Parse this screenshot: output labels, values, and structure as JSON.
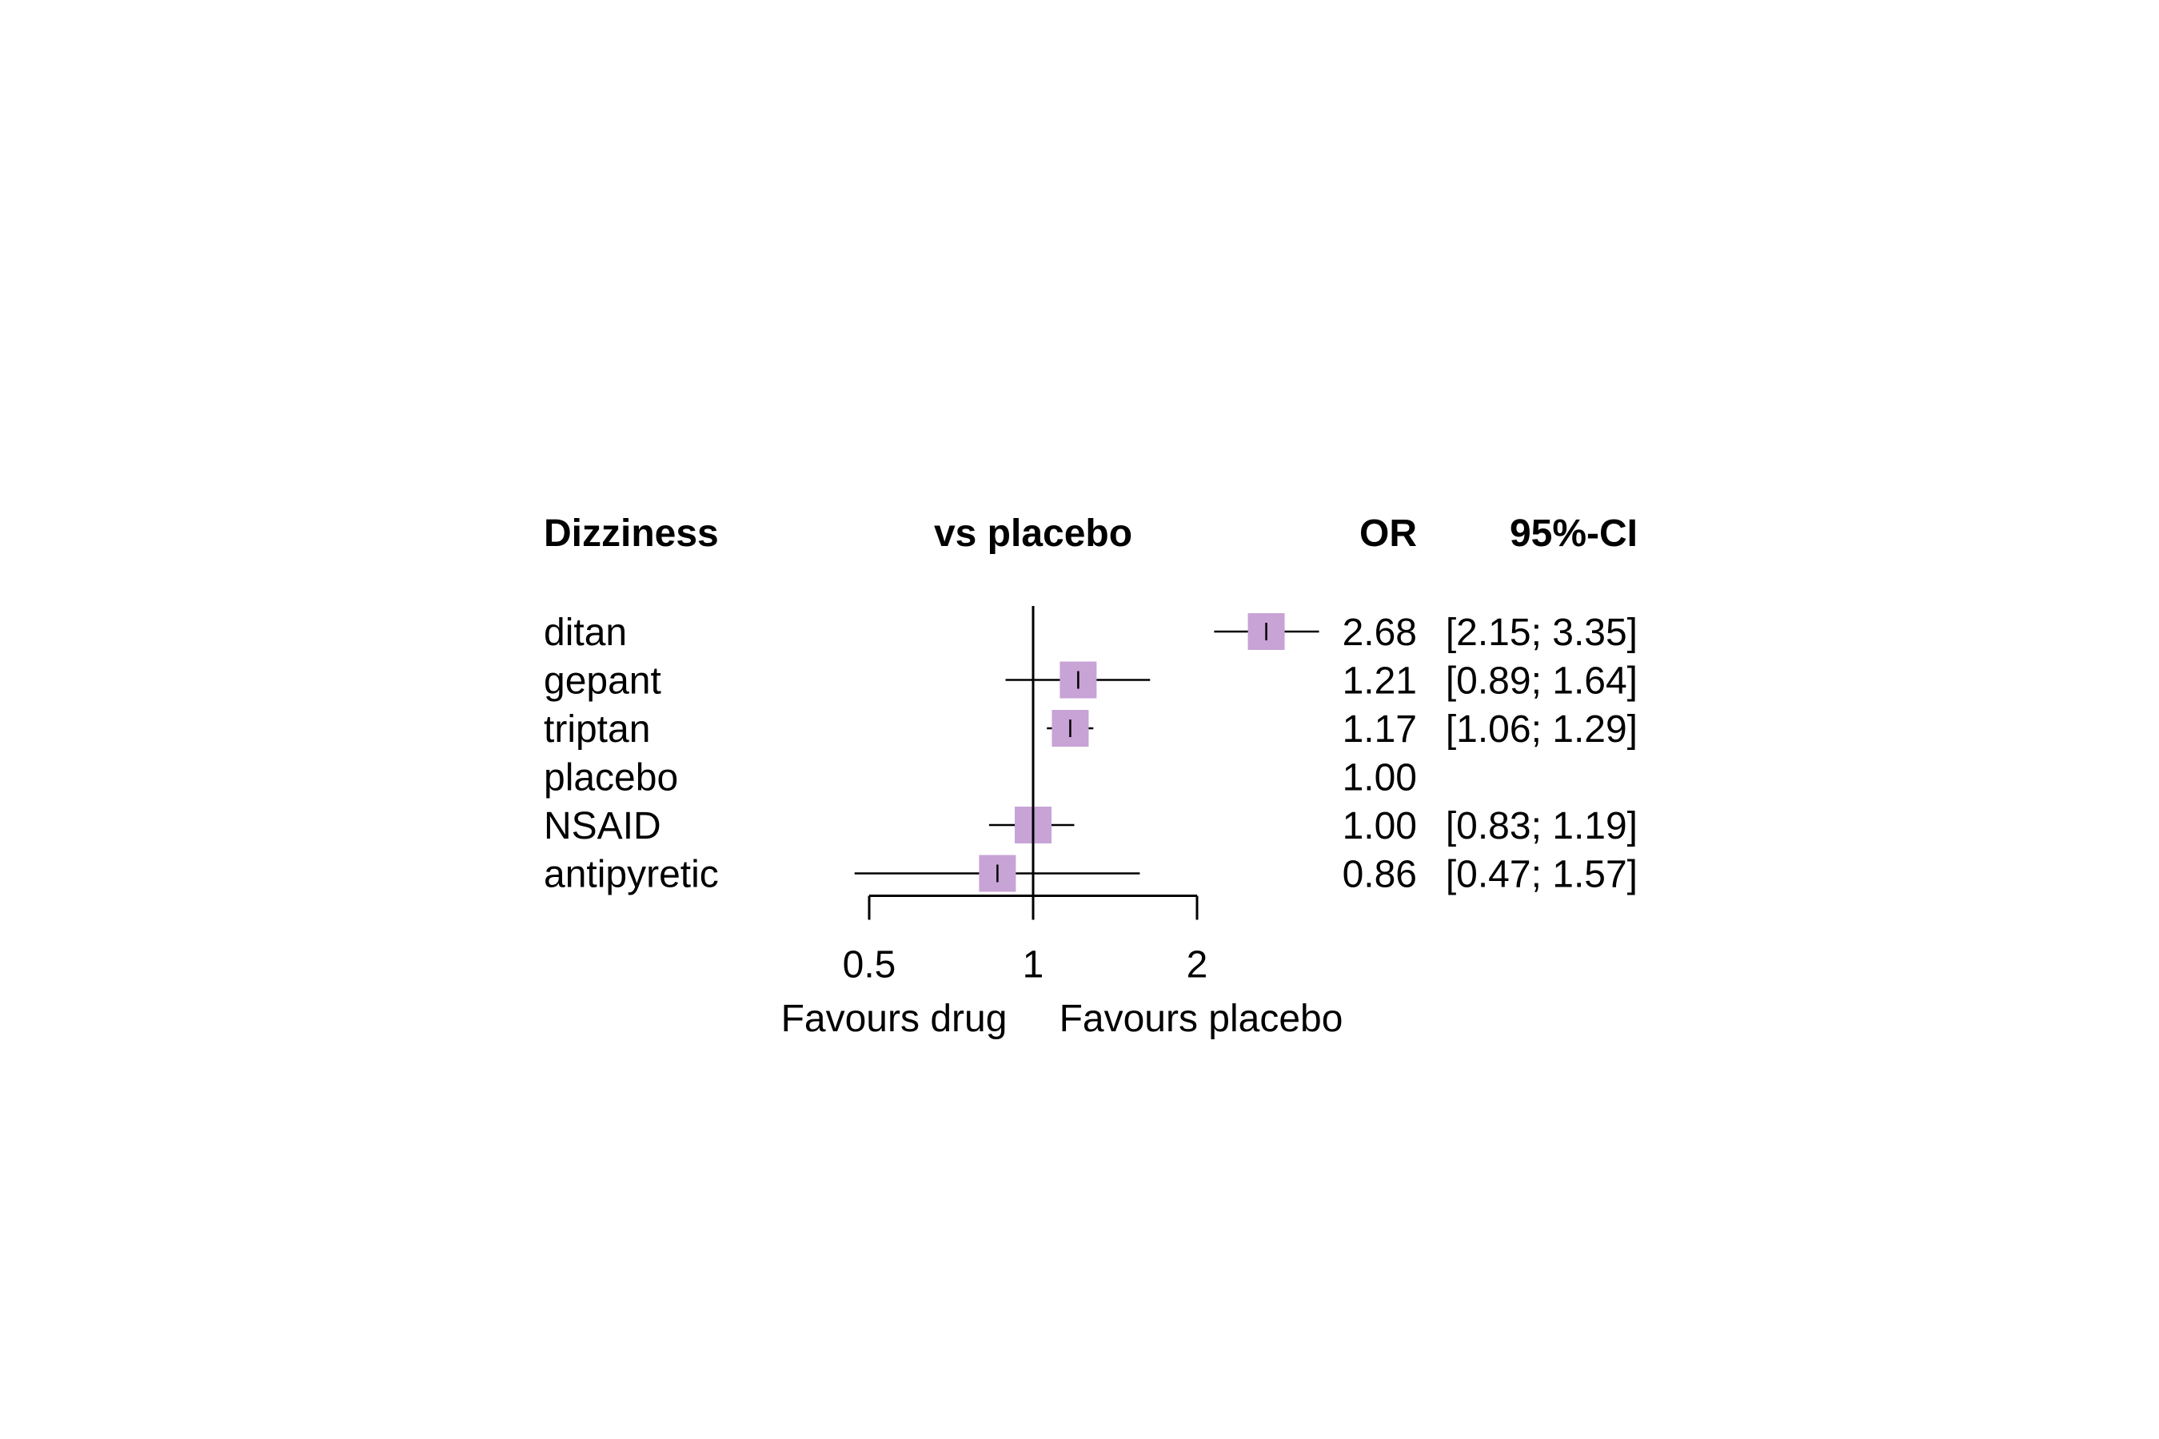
{
  "chart_data": {
    "type": "forest",
    "title": "Dizziness",
    "columns": {
      "comparison": "vs placebo",
      "estimate": "OR",
      "ci": "95%-CI"
    },
    "rows": [
      {
        "label": "ditan",
        "or": 2.68,
        "lower": 2.15,
        "upper": 3.35,
        "or_text": "2.68",
        "ci_text": "[2.15; 3.35]"
      },
      {
        "label": "gepant",
        "or": 1.21,
        "lower": 0.89,
        "upper": 1.64,
        "or_text": "1.21",
        "ci_text": "[0.89; 1.64]"
      },
      {
        "label": "triptan",
        "or": 1.17,
        "lower": 1.06,
        "upper": 1.29,
        "or_text": "1.17",
        "ci_text": "[1.06; 1.29]"
      },
      {
        "label": "placebo",
        "or": 1.0,
        "lower": null,
        "upper": null,
        "or_text": "1.00",
        "ci_text": ""
      },
      {
        "label": "NSAID",
        "or": 1.0,
        "lower": 0.83,
        "upper": 1.19,
        "or_text": "1.00",
        "ci_text": "[0.83; 1.19]"
      },
      {
        "label": "antipyretic",
        "or": 0.86,
        "lower": 0.47,
        "upper": 1.57,
        "or_text": "0.86",
        "ci_text": "[0.47; 1.57]"
      }
    ],
    "x_scale": "log",
    "x_ticks": [
      {
        "value": 0.5,
        "label": "0.5"
      },
      {
        "value": 1,
        "label": "1"
      },
      {
        "value": 2,
        "label": "2"
      }
    ],
    "xlim": [
      0.5,
      2
    ],
    "reference_value": 1,
    "favours_left": "Favours drug",
    "favours_right": "Favours placebo",
    "marker_color": "#c7a3d6"
  }
}
